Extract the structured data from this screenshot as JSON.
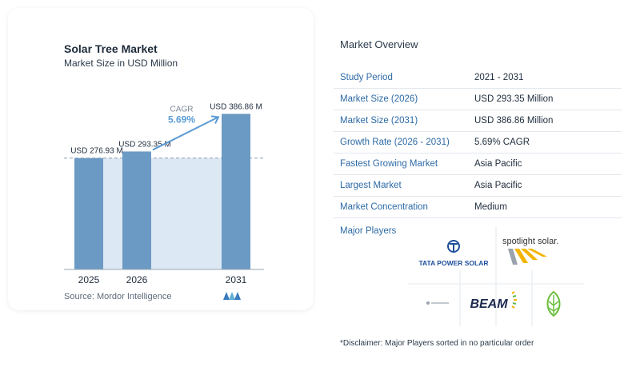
{
  "chart_data": {
    "type": "bar",
    "title": "Solar Tree Market",
    "subtitle": "Market Size in USD Million",
    "categories": [
      "2025",
      "2026",
      "2031"
    ],
    "values": [
      276.93,
      293.35,
      386.86
    ],
    "value_labels": [
      "USD 276.93 M",
      "USD 293.35 M",
      "USD 386.86 M"
    ],
    "cagr_label": "CAGR",
    "cagr_value": "5.69%",
    "bar_color": "#6b9ac4",
    "area_color": "#dce8f3",
    "accent_color": "#5b9bd5"
  },
  "source": "Source:  Mordor Intelligence",
  "overview": {
    "title": "Market Overview",
    "rows": [
      {
        "label": "Study Period",
        "value": "2021 - 2031"
      },
      {
        "label": "Market Size (2026)",
        "value": "USD 293.35 Million"
      },
      {
        "label": "Market Size (2031)",
        "value": "USD 386.86 Million"
      },
      {
        "label": "Growth Rate (2026 - 2031)",
        "value": "5.69% CAGR"
      },
      {
        "label": "Fastest Growing Market",
        "value": "Asia Pacific"
      },
      {
        "label": "Largest Market",
        "value": "Asia Pacific"
      },
      {
        "label": "Market Concentration",
        "value": "Medium"
      }
    ]
  },
  "players": {
    "title": "Major Players",
    "logos": [
      "tata-power-solar-logo",
      "spotlight-solar-logo",
      "small-grey-logo",
      "beam-logo",
      "green-leaf-logo"
    ],
    "tata_text": "TATA POWER SOLAR",
    "spotlight_text": "spotlight solar.",
    "beam_text": "BEAM"
  },
  "disclaimer": "*Disclaimer: Major Players sorted in no particular order"
}
